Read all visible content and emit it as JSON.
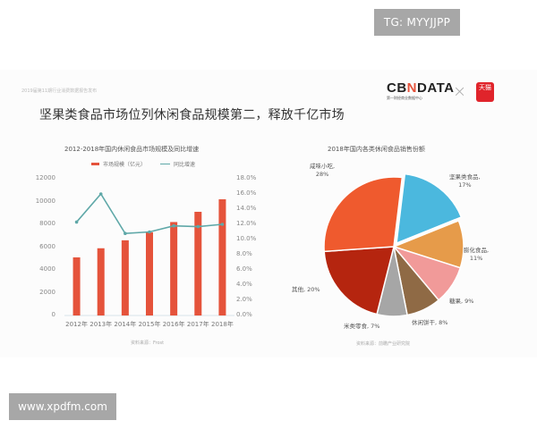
{
  "watermark_top": "TG: MYYJJPP",
  "watermark_bottom": "www.xpdfm.com",
  "slide": {
    "report_source": "2019届第11期行业消费数据报告发布",
    "logo_text": "CBNDATA",
    "logo_sub": "第一财经商业数据中心",
    "logo_separator": "×",
    "partner_logo": "天猫",
    "title": "坚果类食品市场位列休闲食品规模第二，释放千亿市场"
  },
  "chart_data": [
    {
      "type": "bar+line",
      "title": "2012-2018年国内休闲食品市场规模及同比增速",
      "categories": [
        "2012年",
        "2013年",
        "2014年",
        "2015年",
        "2016年",
        "2017年",
        "2018年"
      ],
      "series": [
        {
          "name": "市场规模（亿元）",
          "type": "bar",
          "axis": "left",
          "color": "#e5533b",
          "values": [
            5100,
            5900,
            6600,
            7300,
            8200,
            9100,
            10200
          ]
        },
        {
          "name": "同比增速",
          "type": "line",
          "axis": "right",
          "color": "#5fa8a8",
          "values": [
            12.3,
            16.0,
            10.8,
            11.0,
            11.8,
            11.7,
            12.0
          ]
        }
      ],
      "left_axis": {
        "ticks": [
          "0",
          "2000",
          "4000",
          "6000",
          "8000",
          "10000",
          "12000"
        ],
        "ylim": [
          0,
          12000
        ]
      },
      "right_axis": {
        "ticks": [
          "0.0%",
          "2.0%",
          "4.0%",
          "6.0%",
          "8.0%",
          "10.0%",
          "12.0%",
          "14.0%",
          "16.0%",
          "18.0%"
        ],
        "ylim": [
          0,
          18
        ]
      },
      "source": "资料来源：Frost"
    },
    {
      "type": "pie",
      "title": "2018年国内各类休闲食品销售份额",
      "slices": [
        {
          "label": "咸味小吃",
          "value": 28,
          "color": "#ef5a2e"
        },
        {
          "label": "坚果类食品",
          "value": 17,
          "color": "#4bb8de"
        },
        {
          "label": "膨化食品",
          "value": 11,
          "color": "#e69b4a"
        },
        {
          "label": "糖果",
          "value": 9,
          "color": "#f19a99"
        },
        {
          "label": "休闲饼干",
          "value": 8,
          "color": "#8f6a45"
        },
        {
          "label": "米类零食",
          "value": 7,
          "color": "#a6a6a6"
        },
        {
          "label": "其他",
          "value": 20,
          "color": "#b5250f"
        }
      ],
      "source": "资料来源：前瞻产业研究院"
    }
  ],
  "labels": {
    "bar_legend": "市场规模（亿元）",
    "line_legend": "同比增速",
    "pie": {
      "p0": "咸味小吃,",
      "p0v": "28%",
      "p1": "坚果类食品,",
      "p1v": "17%",
      "p2": "膨化食品,",
      "p2v": "11%",
      "p3": "糖果, 9%",
      "p4": "休闲饼干, 8%",
      "p5": "米类零食, 7%",
      "p6": "其他, 20%"
    }
  }
}
